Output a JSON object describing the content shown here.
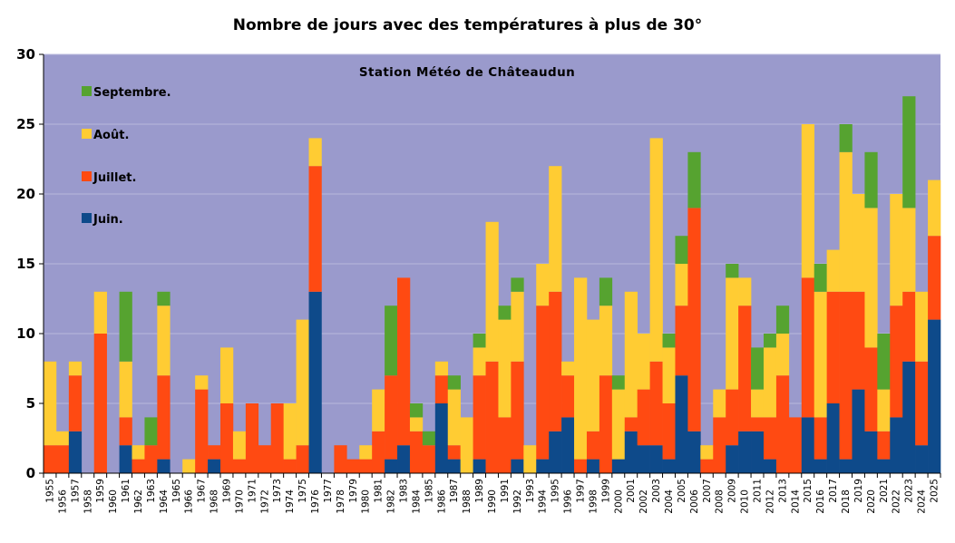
{
  "chart_data": {
    "type": "bar",
    "stacked": true,
    "title": "Nombre de jours avec des températures à plus de 30°",
    "subtitle": "Station Météo de Châteaudun",
    "xlabel": "",
    "ylabel": "",
    "ylim": [
      0,
      30
    ],
    "yticks": [
      0,
      5,
      10,
      15,
      20,
      25,
      30
    ],
    "grid": true,
    "legend_position": "top-left",
    "colors": {
      "plot_background": "#9a9acc",
      "grid": "#b8b8dc",
      "Juin.": "#0e4a8a",
      "Juillet.": "#ff4a12",
      "Août.": "#ffcc33",
      "Septembre.": "#56a330"
    },
    "categories": [
      "1955",
      "1956",
      "1957",
      "1958",
      "1959",
      "1960",
      "1961",
      "1962",
      "1963",
      "1964",
      "1965",
      "1966",
      "1967",
      "1968",
      "1969",
      "1970",
      "1971",
      "1972",
      "1973",
      "1974",
      "1975",
      "1976",
      "1977",
      "1978",
      "1979",
      "1980",
      "1981",
      "1982",
      "1983",
      "1984",
      "1985",
      "1986",
      "1987",
      "1988",
      "1989",
      "1990",
      "1991",
      "1992",
      "1993",
      "1994",
      "1995",
      "1996",
      "1997",
      "1998",
      "1999",
      "2000",
      "2001",
      "2002",
      "2003",
      "2004",
      "2005",
      "2006",
      "2007",
      "2008",
      "2009",
      "2010",
      "2011",
      "2012",
      "2013",
      "2014",
      "2015",
      "2016",
      "2017",
      "2018",
      "2019",
      "2020",
      "2021",
      "2022",
      "2023",
      "2024",
      "2025"
    ],
    "series": [
      {
        "name": "Juin.",
        "values": [
          0,
          0,
          3,
          0,
          0,
          0,
          2,
          0,
          0,
          1,
          0,
          0,
          0,
          1,
          0,
          0,
          0,
          0,
          0,
          0,
          0,
          13,
          0,
          0,
          0,
          0,
          0,
          1,
          2,
          0,
          0,
          5,
          1,
          0,
          1,
          0,
          0,
          1,
          0,
          1,
          3,
          4,
          0,
          1,
          0,
          1,
          3,
          2,
          2,
          1,
          7,
          3,
          0,
          0,
          2,
          3,
          3,
          1,
          0,
          0,
          4,
          1,
          5,
          1,
          6,
          3,
          1,
          4,
          8,
          2,
          11
        ]
      },
      {
        "name": "Juillet.",
        "values": [
          2,
          2,
          4,
          0,
          10,
          0,
          2,
          1,
          2,
          6,
          0,
          0,
          6,
          1,
          5,
          1,
          5,
          2,
          5,
          1,
          2,
          9,
          0,
          2,
          1,
          1,
          3,
          6,
          12,
          3,
          2,
          2,
          1,
          0,
          6,
          8,
          4,
          7,
          0,
          11,
          10,
          3,
          1,
          2,
          7,
          0,
          1,
          4,
          6,
          4,
          5,
          16,
          1,
          4,
          4,
          9,
          1,
          3,
          7,
          4,
          10,
          3,
          8,
          12,
          7,
          6,
          2,
          8,
          5,
          6,
          6
        ]
      },
      {
        "name": "Août.",
        "values": [
          6,
          1,
          1,
          0,
          3,
          0,
          4,
          1,
          0,
          5,
          0,
          1,
          1,
          0,
          4,
          2,
          0,
          0,
          0,
          4,
          9,
          2,
          0,
          0,
          0,
          1,
          3,
          0,
          0,
          1,
          0,
          1,
          4,
          4,
          2,
          10,
          7,
          5,
          2,
          3,
          9,
          1,
          13,
          8,
          5,
          5,
          9,
          4,
          16,
          4,
          3,
          0,
          1,
          2,
          8,
          2,
          2,
          5,
          3,
          0,
          11,
          9,
          3,
          10,
          7,
          10,
          3,
          8,
          6,
          5,
          4
        ]
      },
      {
        "name": "Septembre.",
        "values": [
          0,
          0,
          0,
          0,
          0,
          0,
          5,
          0,
          2,
          1,
          0,
          0,
          0,
          0,
          0,
          0,
          0,
          0,
          0,
          0,
          0,
          0,
          0,
          0,
          0,
          0,
          0,
          5,
          0,
          1,
          1,
          0,
          1,
          0,
          1,
          0,
          1,
          1,
          0,
          0,
          0,
          0,
          0,
          0,
          2,
          1,
          0,
          0,
          0,
          1,
          2,
          4,
          0,
          0,
          1,
          0,
          3,
          1,
          2,
          0,
          0,
          2,
          0,
          2,
          0,
          4,
          4,
          0,
          8,
          0,
          0
        ]
      }
    ]
  }
}
